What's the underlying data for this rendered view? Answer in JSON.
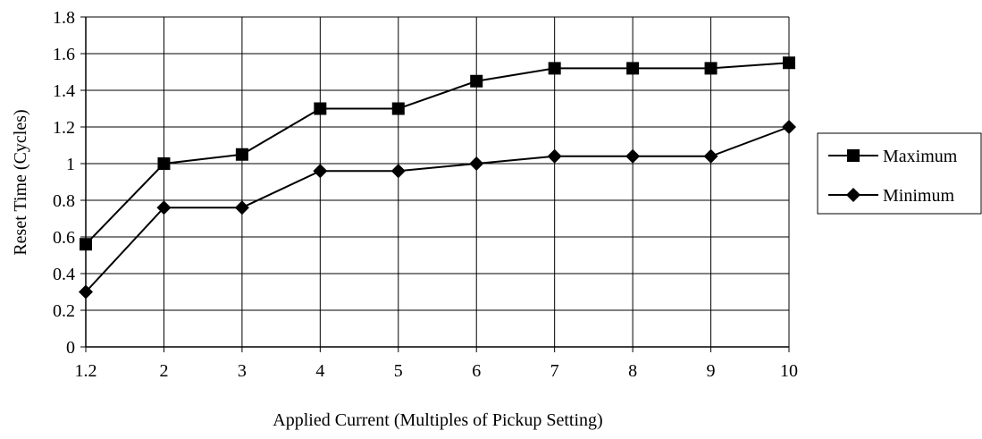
{
  "chart_data": {
    "type": "line",
    "title": "",
    "xlabel": "Applied Current (Multiples of Pickup Setting)",
    "ylabel": "Reset Time (Cycles)",
    "categories": [
      "1.2",
      "2",
      "3",
      "4",
      "5",
      "6",
      "7",
      "8",
      "9",
      "10"
    ],
    "ylim": [
      0,
      1.8
    ],
    "yticks": [
      "0",
      "0.2",
      "0.4",
      "0.6",
      "0.8",
      "1",
      "1.2",
      "1.4",
      "1.6",
      "1.8"
    ],
    "grid": true,
    "legend_position": "right",
    "series": [
      {
        "name": "Maximum",
        "marker": "square",
        "color": "#000000",
        "values": [
          0.56,
          1.0,
          1.05,
          1.3,
          1.3,
          1.45,
          1.52,
          1.52,
          1.52,
          1.55
        ]
      },
      {
        "name": "Minimum",
        "marker": "diamond",
        "color": "#000000",
        "values": [
          0.3,
          0.76,
          0.76,
          0.96,
          0.96,
          1.0,
          1.04,
          1.04,
          1.04,
          1.2
        ]
      }
    ]
  }
}
